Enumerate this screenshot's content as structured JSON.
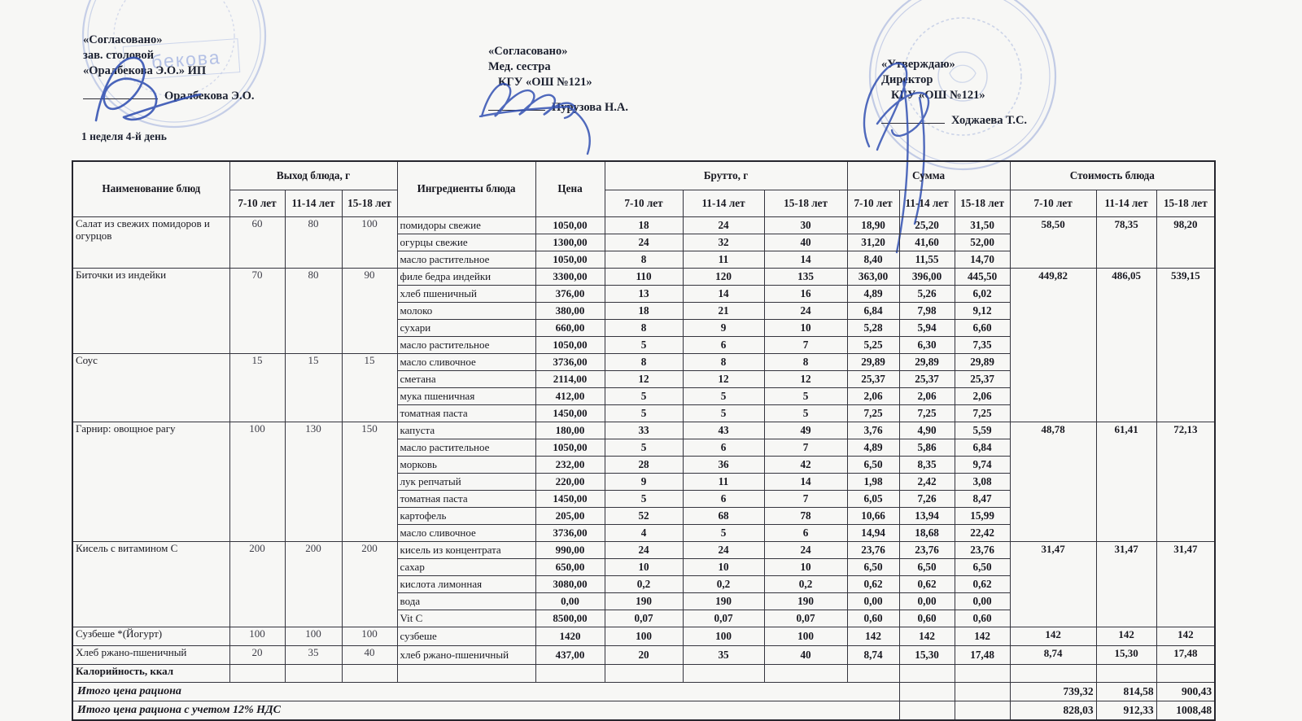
{
  "page": {
    "week_day_label": "1 неделя 4-й день"
  },
  "colors": {
    "ink_blue": "#3150b2",
    "stamp_blue": "#92a5d9",
    "text_dark": "#1c2130",
    "border": "#34343d",
    "paper": "#f7f7f5"
  },
  "signatures": [
    {
      "title": "«Согласовано»",
      "role": "зав. столовой",
      "org": "«Оралбекова Э.О.» ИП",
      "name": "Оралбекова Э.О."
    },
    {
      "title": "«Согласовано»",
      "role": "Мед. сестра",
      "org": "КГУ «ОШ №121»",
      "name": "Пурузова Н.А."
    },
    {
      "title": "«Утверждаю»",
      "role": "Директор",
      "org": "КГУ «ОШ №121»",
      "name": "Ходжаева Т.С."
    }
  ],
  "stamps": {
    "left_text": "бекова"
  },
  "table": {
    "header": {
      "name": "Наименование блюд",
      "yield": "Выход блюда, г",
      "ingredients": "Ингредиенты блюда",
      "price": "Цена",
      "brutto": "Брутто, г",
      "sum": "Сумма",
      "cost": "Стоимость блюда",
      "ages": [
        "7-10 лет",
        "11-14 лет",
        "15-18 лет"
      ]
    },
    "groups": [
      {
        "name": "Салат из свежих помидоров и огурцов",
        "yields": [
          "60",
          "80",
          "100"
        ],
        "cost": [
          "58,50",
          "78,35",
          "98,20"
        ],
        "rows": [
          [
            "помидоры свежие",
            "1050,00",
            "18",
            "24",
            "30",
            "18,90",
            "25,20",
            "31,50"
          ],
          [
            "огурцы свежие",
            "1300,00",
            "24",
            "32",
            "40",
            "31,20",
            "41,60",
            "52,00"
          ],
          [
            "масло растительное",
            "1050,00",
            "8",
            "11",
            "14",
            "8,40",
            "11,55",
            "14,70"
          ]
        ]
      },
      {
        "name": "Биточки из индейки",
        "yields": [
          "70",
          "80",
          "90"
        ],
        "cost": [
          "449,82",
          "486,05",
          "539,15"
        ],
        "cost_rows": 9,
        "rows": [
          [
            "филе бедра индейки",
            "3300,00",
            "110",
            "120",
            "135",
            "363,00",
            "396,00",
            "445,50"
          ],
          [
            "хлеб пшеничный",
            "376,00",
            "13",
            "14",
            "16",
            "4,89",
            "5,26",
            "6,02"
          ],
          [
            "молоко",
            "380,00",
            "18",
            "21",
            "24",
            "6,84",
            "7,98",
            "9,12"
          ],
          [
            "сухари",
            "660,00",
            "8",
            "9",
            "10",
            "5,28",
            "5,94",
            "6,60"
          ],
          [
            "масло растительное",
            "1050,00",
            "5",
            "6",
            "7",
            "5,25",
            "6,30",
            "7,35"
          ]
        ]
      },
      {
        "name": "Соус",
        "yields": [
          "15",
          "15",
          "15"
        ],
        "cost": null,
        "rows": [
          [
            "масло сливочное",
            "3736,00",
            "8",
            "8",
            "8",
            "29,89",
            "29,89",
            "29,89"
          ],
          [
            "сметана",
            "2114,00",
            "12",
            "12",
            "12",
            "25,37",
            "25,37",
            "25,37"
          ],
          [
            "мука пшеничная",
            "412,00",
            "5",
            "5",
            "5",
            "2,06",
            "2,06",
            "2,06"
          ],
          [
            "томатная паста",
            "1450,00",
            "5",
            "5",
            "5",
            "7,25",
            "7,25",
            "7,25"
          ]
        ]
      },
      {
        "name": "Гарнир: овощное рагу",
        "yields": [
          "100",
          "130",
          "150"
        ],
        "cost": [
          "48,78",
          "61,41",
          "72,13"
        ],
        "rows": [
          [
            "капуста",
            "180,00",
            "33",
            "43",
            "49",
            "3,76",
            "4,90",
            "5,59"
          ],
          [
            "масло растительное",
            "1050,00",
            "5",
            "6",
            "7",
            "4,89",
            "5,86",
            "6,84"
          ],
          [
            "морковь",
            "232,00",
            "28",
            "36",
            "42",
            "6,50",
            "8,35",
            "9,74"
          ],
          [
            "лук репчатый",
            "220,00",
            "9",
            "11",
            "14",
            "1,98",
            "2,42",
            "3,08"
          ],
          [
            "томатная паста",
            "1450,00",
            "5",
            "6",
            "7",
            "6,05",
            "7,26",
            "8,47"
          ],
          [
            "картофель",
            "205,00",
            "52",
            "68",
            "78",
            "10,66",
            "13,94",
            "15,99"
          ],
          [
            "масло сливочное",
            "3736,00",
            "4",
            "5",
            "6",
            "14,94",
            "18,68",
            "22,42"
          ]
        ]
      },
      {
        "name": "Кисель с витамином С",
        "yields": [
          "200",
          "200",
          "200"
        ],
        "cost": [
          "31,47",
          "31,47",
          "31,47"
        ],
        "rows": [
          [
            "кисель из концентрата",
            "990,00",
            "24",
            "24",
            "24",
            "23,76",
            "23,76",
            "23,76"
          ],
          [
            "сахар",
            "650,00",
            "10",
            "10",
            "10",
            "6,50",
            "6,50",
            "6,50"
          ],
          [
            "кислота лимонная",
            "3080,00",
            "0,2",
            "0,2",
            "0,2",
            "0,62",
            "0,62",
            "0,62"
          ],
          [
            "вода",
            "0,00",
            "190",
            "190",
            "190",
            "0,00",
            "0,00",
            "0,00"
          ],
          [
            "Vit C",
            "8500,00",
            "0,07",
            "0,07",
            "0,07",
            "0,60",
            "0,60",
            "0,60"
          ]
        ]
      },
      {
        "name": "Сузбеше *(Йогурт)",
        "yields": [
          "100",
          "100",
          "100"
        ],
        "cost": [
          "142",
          "142",
          "142"
        ],
        "rows": [
          [
            "сузбеше",
            "1420",
            "100",
            "100",
            "100",
            "142",
            "142",
            "142"
          ]
        ]
      },
      {
        "name": "Хлеб ржано-пшеничный",
        "yields": [
          "20",
          "35",
          "40"
        ],
        "cost": [
          "8,74",
          "15,30",
          "17,48"
        ],
        "rows": [
          [
            "хлеб ржано-пшеничный",
            "437,00",
            "20",
            "35",
            "40",
            "8,74",
            "15,30",
            "17,48"
          ]
        ]
      }
    ],
    "special_row": {
      "label": "Калорийность, ккал"
    },
    "footer_rows": [
      {
        "label": "Итого цена рациона",
        "values": [
          "739,32",
          "814,58",
          "900,43"
        ]
      },
      {
        "label": "Итого цена рациона с учетом 12% НДС",
        "values": [
          "828,03",
          "912,33",
          "1008,48"
        ]
      }
    ]
  }
}
